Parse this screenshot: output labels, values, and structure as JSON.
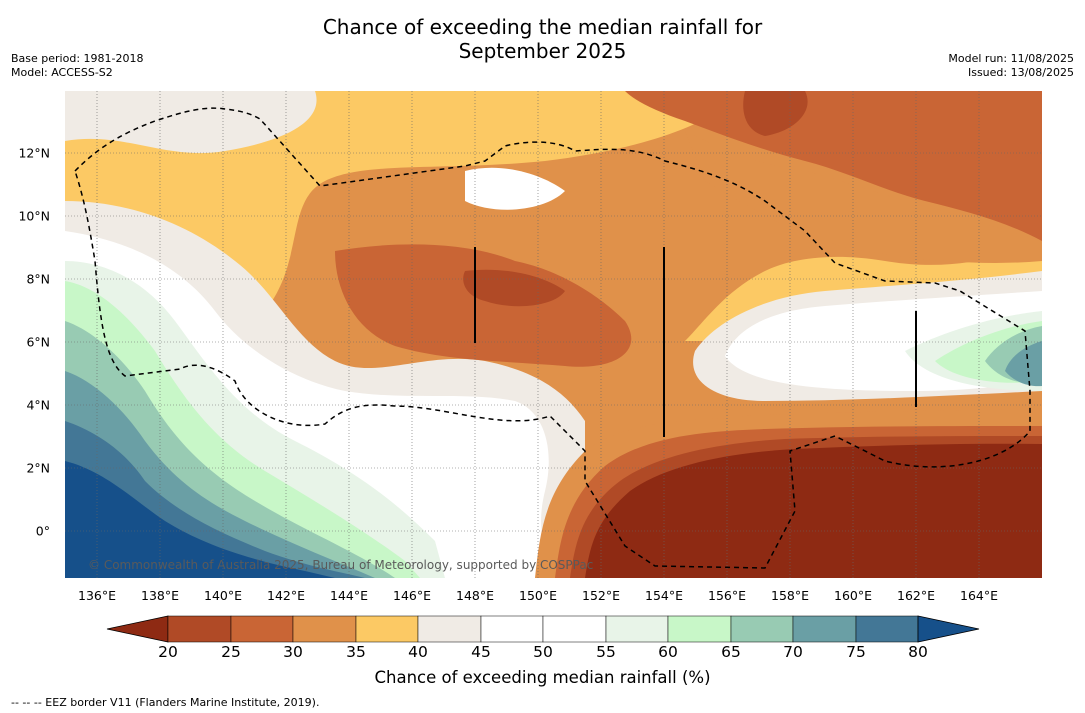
{
  "title_line1": "Chance of exceeding the median rainfall for",
  "title_line2": "September 2025",
  "meta_left": {
    "base_period": "Base period: 1981-2018",
    "model": "Model: ACCESS-S2"
  },
  "meta_right": {
    "model_run": "Model run: 11/08/2025",
    "issued": "Issued: 13/08/2025"
  },
  "copyright": "© Commonwealth of Australia 2025, Bureau of Meteorology, supported by COSPPac",
  "x_ticks": [
    "136°E",
    "138°E",
    "140°E",
    "142°E",
    "144°E",
    "146°E",
    "148°E",
    "150°E",
    "152°E",
    "154°E",
    "156°E",
    "158°E",
    "160°E",
    "162°E",
    "164°E"
  ],
  "y_ticks": [
    "12°N",
    "10°N",
    "8°N",
    "6°N",
    "4°N",
    "2°N",
    "0°"
  ],
  "colorbar": {
    "labels": [
      "20",
      "25",
      "30",
      "35",
      "40",
      "45",
      "50",
      "55",
      "60",
      "65",
      "70",
      "75",
      "80"
    ],
    "colors": [
      "#8e2a13",
      "#b04a26",
      "#c96535",
      "#e0914a",
      "#fcc964",
      "#f0ebe5",
      "#ffffff",
      "#ffffff",
      "#e8f4e8",
      "#c8f7c8",
      "#98cbb3",
      "#6a9fa5",
      "#437796",
      "#16508a"
    ],
    "title": "Chance of exceeding median rainfall (%)"
  },
  "footnote": "--  --  -- EEZ border V11 (Flanders Marine Institute, 2019).",
  "map_colors": {
    "p20": "#8e2a13",
    "p25": "#b04a26",
    "p30": "#c96535",
    "p35": "#e0914a",
    "p40": "#fcc964",
    "p45": "#f0ebe5",
    "p55": "#ffffff",
    "p60": "#e8f4e8",
    "p65": "#c8f7c8",
    "p70": "#98cbb3",
    "p75": "#6a9fa5",
    "p78": "#437796",
    "p80": "#16508a"
  }
}
